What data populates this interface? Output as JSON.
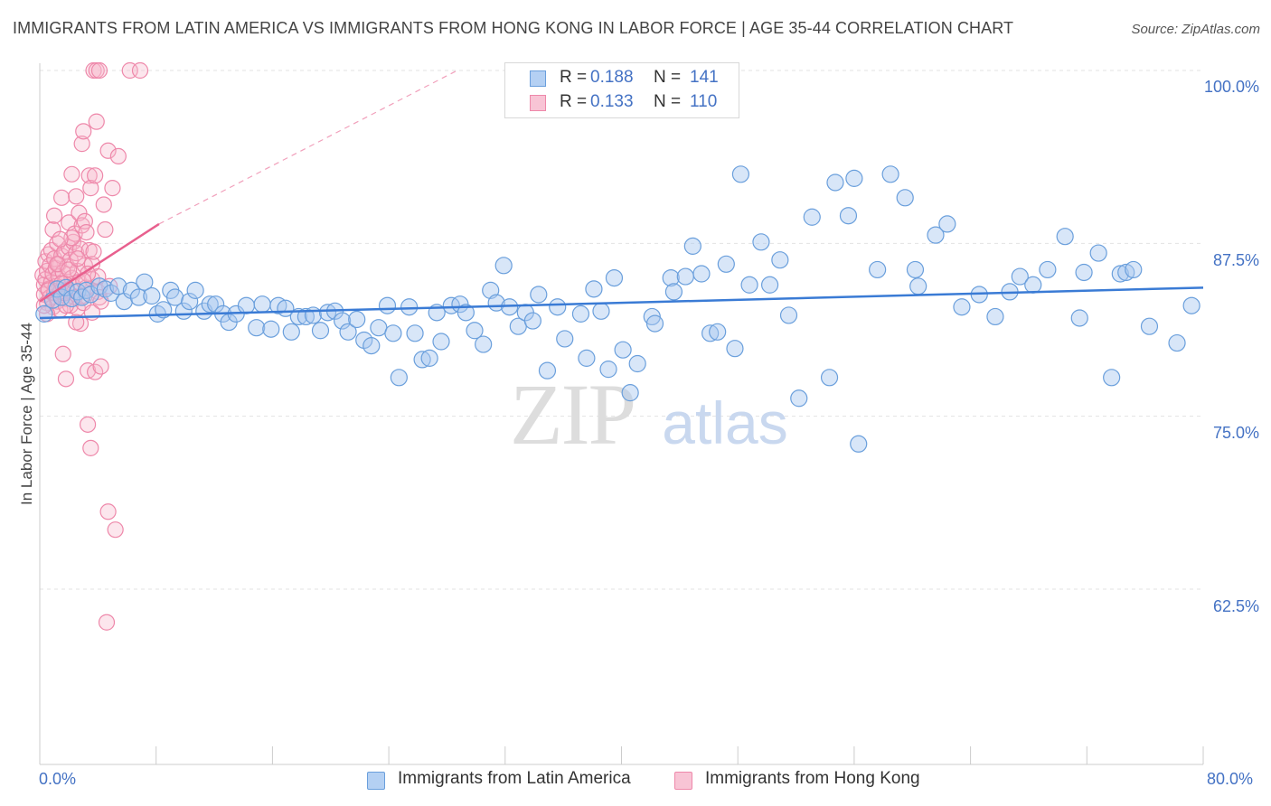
{
  "title": "IMMIGRANTS FROM LATIN AMERICA VS IMMIGRANTS FROM HONG KONG IN LABOR FORCE | AGE 35-44 CORRELATION CHART",
  "source": "Source: ZipAtlas.com",
  "watermark": {
    "zip": "ZIP",
    "atlas": "atlas"
  },
  "colors": {
    "blue_fill": "#a8c8f0",
    "blue_stroke": "#6a9fdc",
    "blue_line": "#3a7bd5",
    "pink_fill": "#f5b8cc",
    "pink_stroke": "#ee88aa",
    "pink_line": "#e8608e",
    "tick_text": "#4472c4",
    "grid": "#e3e3e3"
  },
  "legend": {
    "rows": [
      {
        "r_label": "R =",
        "r_value": "0.188",
        "n_label": "N =",
        "n_value": "141"
      },
      {
        "r_label": "R =",
        "r_value": "0.133",
        "n_label": "N =",
        "n_value": "110"
      }
    ]
  },
  "bottom_legend": [
    "Immigrants from Latin America",
    "Immigrants from Hong Kong"
  ],
  "chart_data": {
    "type": "scatter",
    "title": "IMMIGRANTS FROM LATIN AMERICA VS IMMIGRANTS FROM HONG KONG IN LABOR FORCE | AGE 35-44 CORRELATION CHART",
    "xlabel": "",
    "ylabel": "In Labor Force | Age 35-44",
    "xlim": [
      0,
      80
    ],
    "ylim": [
      50,
      101.5
    ],
    "x_tick_labels": [
      "0.0%",
      "80.0%"
    ],
    "y_ticks": [
      62.5,
      75.0,
      87.5,
      100.0
    ],
    "y_tick_labels": [
      "62.5%",
      "75.0%",
      "87.5%",
      "100.0%"
    ],
    "grid": true,
    "legend_position": "top-center",
    "series": [
      {
        "name": "Immigrants from Latin America",
        "r": 0.188,
        "n": 141,
        "trend": {
          "x": [
            0,
            80
          ],
          "y": [
            82.1,
            84.3
          ]
        },
        "points": [
          [
            0.3,
            82.4
          ],
          [
            0.9,
            83.4
          ],
          [
            1.2,
            84.2
          ],
          [
            1.5,
            83.6
          ],
          [
            1.8,
            84.3
          ],
          [
            2.2,
            83.5
          ],
          [
            2.6,
            84.0
          ],
          [
            2.9,
            83.6
          ],
          [
            3.2,
            84.1
          ],
          [
            3.5,
            83.8
          ],
          [
            4.1,
            84.4
          ],
          [
            4.5,
            84.2
          ],
          [
            4.9,
            83.9
          ],
          [
            5.4,
            84.4
          ],
          [
            5.8,
            83.3
          ],
          [
            6.3,
            84.1
          ],
          [
            6.8,
            83.6
          ],
          [
            7.2,
            84.7
          ],
          [
            7.7,
            83.7
          ],
          [
            8.1,
            82.4
          ],
          [
            8.5,
            82.7
          ],
          [
            9.0,
            84.1
          ],
          [
            9.3,
            83.6
          ],
          [
            9.9,
            82.6
          ],
          [
            10.3,
            83.3
          ],
          [
            10.7,
            84.1
          ],
          [
            11.3,
            82.6
          ],
          [
            11.7,
            83.1
          ],
          [
            12.1,
            83.1
          ],
          [
            12.6,
            82.4
          ],
          [
            13.0,
            81.8
          ],
          [
            13.5,
            82.4
          ],
          [
            14.2,
            83.0
          ],
          [
            14.9,
            81.4
          ],
          [
            15.3,
            83.1
          ],
          [
            15.9,
            81.3
          ],
          [
            16.4,
            83.0
          ],
          [
            16.9,
            82.8
          ],
          [
            17.3,
            81.1
          ],
          [
            17.8,
            82.2
          ],
          [
            18.3,
            82.2
          ],
          [
            18.8,
            82.3
          ],
          [
            19.3,
            81.2
          ],
          [
            19.8,
            82.5
          ],
          [
            20.3,
            82.6
          ],
          [
            20.8,
            81.9
          ],
          [
            21.2,
            81.1
          ],
          [
            21.8,
            82.0
          ],
          [
            22.3,
            80.5
          ],
          [
            22.8,
            80.1
          ],
          [
            23.3,
            81.4
          ],
          [
            23.9,
            83.0
          ],
          [
            24.3,
            81.0
          ],
          [
            24.7,
            77.8
          ],
          [
            25.4,
            82.9
          ],
          [
            25.8,
            81.0
          ],
          [
            26.3,
            79.1
          ],
          [
            26.8,
            79.2
          ],
          [
            27.3,
            82.5
          ],
          [
            27.6,
            80.4
          ],
          [
            28.3,
            83.0
          ],
          [
            28.9,
            83.1
          ],
          [
            29.3,
            82.5
          ],
          [
            29.9,
            81.2
          ],
          [
            30.5,
            80.2
          ],
          [
            31.0,
            84.1
          ],
          [
            31.4,
            83.2
          ],
          [
            31.9,
            85.9
          ],
          [
            32.3,
            82.9
          ],
          [
            32.9,
            81.5
          ],
          [
            33.4,
            82.5
          ],
          [
            33.9,
            81.9
          ],
          [
            34.3,
            83.8
          ],
          [
            34.9,
            78.3
          ],
          [
            35.6,
            82.9
          ],
          [
            36.1,
            80.6
          ],
          [
            37.2,
            82.4
          ],
          [
            37.6,
            79.2
          ],
          [
            38.1,
            84.2
          ],
          [
            38.6,
            82.6
          ],
          [
            39.1,
            78.4
          ],
          [
            39.5,
            85.0
          ],
          [
            40.1,
            79.8
          ],
          [
            40.6,
            76.7
          ],
          [
            41.1,
            78.8
          ],
          [
            42.1,
            82.2
          ],
          [
            42.3,
            81.7
          ],
          [
            43.4,
            85.0
          ],
          [
            43.6,
            84.0
          ],
          [
            44.4,
            85.1
          ],
          [
            44.9,
            87.3
          ],
          [
            45.5,
            85.3
          ],
          [
            46.1,
            81.0
          ],
          [
            46.6,
            81.1
          ],
          [
            47.2,
            86.0
          ],
          [
            47.8,
            79.9
          ],
          [
            48.2,
            92.5
          ],
          [
            48.8,
            84.5
          ],
          [
            49.6,
            87.6
          ],
          [
            50.2,
            84.5
          ],
          [
            50.9,
            86.3
          ],
          [
            51.5,
            82.3
          ],
          [
            52.2,
            76.3
          ],
          [
            53.1,
            89.4
          ],
          [
            54.3,
            77.8
          ],
          [
            54.7,
            91.9
          ],
          [
            55.6,
            89.5
          ],
          [
            56.0,
            92.2
          ],
          [
            56.3,
            73.0
          ],
          [
            57.6,
            85.6
          ],
          [
            58.5,
            92.5
          ],
          [
            59.5,
            90.8
          ],
          [
            60.2,
            85.6
          ],
          [
            60.4,
            84.4
          ],
          [
            61.6,
            88.1
          ],
          [
            62.4,
            88.9
          ],
          [
            63.4,
            82.9
          ],
          [
            64.6,
            83.8
          ],
          [
            65.7,
            82.2
          ],
          [
            66.7,
            84.0
          ],
          [
            67.4,
            85.1
          ],
          [
            68.3,
            84.5
          ],
          [
            69.3,
            85.6
          ],
          [
            70.5,
            88.0
          ],
          [
            71.5,
            82.1
          ],
          [
            71.8,
            85.4
          ],
          [
            72.8,
            86.8
          ],
          [
            73.7,
            77.8
          ],
          [
            74.3,
            85.3
          ],
          [
            74.7,
            85.4
          ],
          [
            75.2,
            85.6
          ],
          [
            76.3,
            81.5
          ],
          [
            78.2,
            80.3
          ],
          [
            79.2,
            83.0
          ]
        ]
      },
      {
        "name": "Immigrants from Hong Kong",
        "r": 0.133,
        "n": 110,
        "trend": {
          "x": [
            0,
            8.2
          ],
          "y": [
            83.3,
            88.9
          ]
        },
        "trend_dashed": {
          "x": [
            8.2,
            28.7
          ],
          "y": [
            88.9,
            100.0
          ]
        },
        "points": [
          [
            0.2,
            85.2
          ],
          [
            0.3,
            84.5
          ],
          [
            0.3,
            83.8
          ],
          [
            0.4,
            86.2
          ],
          [
            0.4,
            84.9
          ],
          [
            0.5,
            85.5
          ],
          [
            0.5,
            83.2
          ],
          [
            0.6,
            86.7
          ],
          [
            0.6,
            84.2
          ],
          [
            0.7,
            85.9
          ],
          [
            0.7,
            83.6
          ],
          [
            0.8,
            87.0
          ],
          [
            0.8,
            84.7
          ],
          [
            0.9,
            85.3
          ],
          [
            0.9,
            82.9
          ],
          [
            1.0,
            86.4
          ],
          [
            1.0,
            83.9
          ],
          [
            1.1,
            85.7
          ],
          [
            1.1,
            84.4
          ],
          [
            1.2,
            87.5
          ],
          [
            1.2,
            83.3
          ],
          [
            1.3,
            86.0
          ],
          [
            1.3,
            85.1
          ],
          [
            1.4,
            84.0
          ],
          [
            1.4,
            82.7
          ],
          [
            1.5,
            86.6
          ],
          [
            1.5,
            90.8
          ],
          [
            1.6,
            85.4
          ],
          [
            1.6,
            79.5
          ],
          [
            1.7,
            84.6
          ],
          [
            1.7,
            86.9
          ],
          [
            1.8,
            83.5
          ],
          [
            1.8,
            77.7
          ],
          [
            1.9,
            85.8
          ],
          [
            1.9,
            84.1
          ],
          [
            2.0,
            87.2
          ],
          [
            2.0,
            89.0
          ],
          [
            2.1,
            83.0
          ],
          [
            2.1,
            86.3
          ],
          [
            2.2,
            85.0
          ],
          [
            2.2,
            92.5
          ],
          [
            2.3,
            87.6
          ],
          [
            2.3,
            84.4
          ],
          [
            2.4,
            83.6
          ],
          [
            2.4,
            88.2
          ],
          [
            2.5,
            90.9
          ],
          [
            2.5,
            86.8
          ],
          [
            2.6,
            85.5
          ],
          [
            2.6,
            82.8
          ],
          [
            2.7,
            84.7
          ],
          [
            2.7,
            89.7
          ],
          [
            2.8,
            81.7
          ],
          [
            2.8,
            87.1
          ],
          [
            2.9,
            94.7
          ],
          [
            2.9,
            88.8
          ],
          [
            3.0,
            83.2
          ],
          [
            3.0,
            95.6
          ],
          [
            3.1,
            89.1
          ],
          [
            3.1,
            85.9
          ],
          [
            3.2,
            84.3
          ],
          [
            3.2,
            88.3
          ],
          [
            3.3,
            78.3
          ],
          [
            3.3,
            74.4
          ],
          [
            3.4,
            87.0
          ],
          [
            3.4,
            92.4
          ],
          [
            3.5,
            72.7
          ],
          [
            3.5,
            91.5
          ],
          [
            3.6,
            84.9
          ],
          [
            3.6,
            86.0
          ],
          [
            3.7,
            100.0
          ],
          [
            3.7,
            86.9
          ],
          [
            3.8,
            78.2
          ],
          [
            3.8,
            92.4
          ],
          [
            3.9,
            100.0
          ],
          [
            3.9,
            96.3
          ],
          [
            4.0,
            85.1
          ],
          [
            4.0,
            84.0
          ],
          [
            4.1,
            100.0
          ],
          [
            4.1,
            83.6
          ],
          [
            4.2,
            78.6
          ],
          [
            4.2,
            83.3
          ],
          [
            4.4,
            90.3
          ],
          [
            4.5,
            88.5
          ],
          [
            4.6,
            60.1
          ],
          [
            4.7,
            94.2
          ],
          [
            4.7,
            68.1
          ],
          [
            4.8,
            84.4
          ],
          [
            5.0,
            91.5
          ],
          [
            5.2,
            66.8
          ],
          [
            5.4,
            93.8
          ],
          [
            6.2,
            100.0
          ],
          [
            6.9,
            100.0
          ],
          [
            0.5,
            82.4
          ],
          [
            0.9,
            88.5
          ],
          [
            1.2,
            86.0
          ],
          [
            1.5,
            84.6
          ],
          [
            1.8,
            83.0
          ],
          [
            2.2,
            87.9
          ],
          [
            2.5,
            81.8
          ],
          [
            2.9,
            83.7
          ],
          [
            3.3,
            85.3
          ],
          [
            3.6,
            82.5
          ],
          [
            1.0,
            89.5
          ],
          [
            1.4,
            87.8
          ],
          [
            0.6,
            84.1
          ],
          [
            2.0,
            85.6
          ],
          [
            1.7,
            83.9
          ],
          [
            2.6,
            86.4
          ],
          [
            0.3,
            83.0
          ],
          [
            3.0,
            84.8
          ]
        ]
      }
    ]
  }
}
